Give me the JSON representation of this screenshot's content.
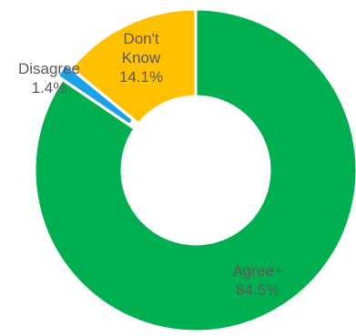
{
  "chart_data": {
    "type": "pie",
    "donut": true,
    "categories": [
      "Agree+",
      "Disagree",
      "Don't Know"
    ],
    "values": [
      84.5,
      1.4,
      14.1
    ],
    "data_labels": [
      [
        "Agree+",
        "84.5%"
      ],
      [
        "Disagree",
        "1.4%"
      ],
      [
        "Don't",
        "Know",
        "14.1%"
      ]
    ],
    "colors": [
      "#00B050",
      "#1AA1E8",
      "#FFC000"
    ],
    "explode_slice": "Disagree",
    "title": "",
    "legend": "none"
  }
}
